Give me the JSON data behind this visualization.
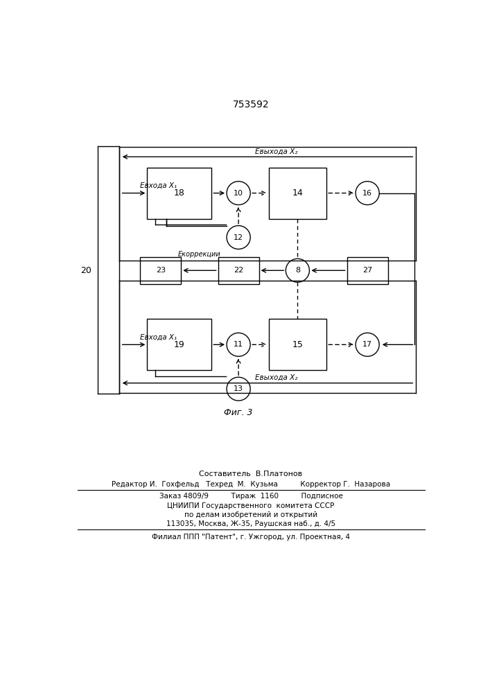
{
  "patent_number": "753592",
  "background_color": "#ffffff",
  "line_color": "#000000",
  "fig_label": "Фиг. 3",
  "composer": "Составитель  В.Платонов",
  "editor_line": "Редактор И.  Гохфельд   Техред  М.  Кузьма          Корректор Г.  Назарова",
  "order_line": "Заказ 4809/9          Тираж  1160          Подписное",
  "cniip1": "ЦНИИПИ Государственного  комитета СССР",
  "cniip2": "по делам изобретений и открытий",
  "cniip3": "113035, Москва, Ж-35, Раушская наб., д. 4/5",
  "filial": "Филиал ППП \"Патент\", г. Ужгород, ул. Проектная, 4"
}
